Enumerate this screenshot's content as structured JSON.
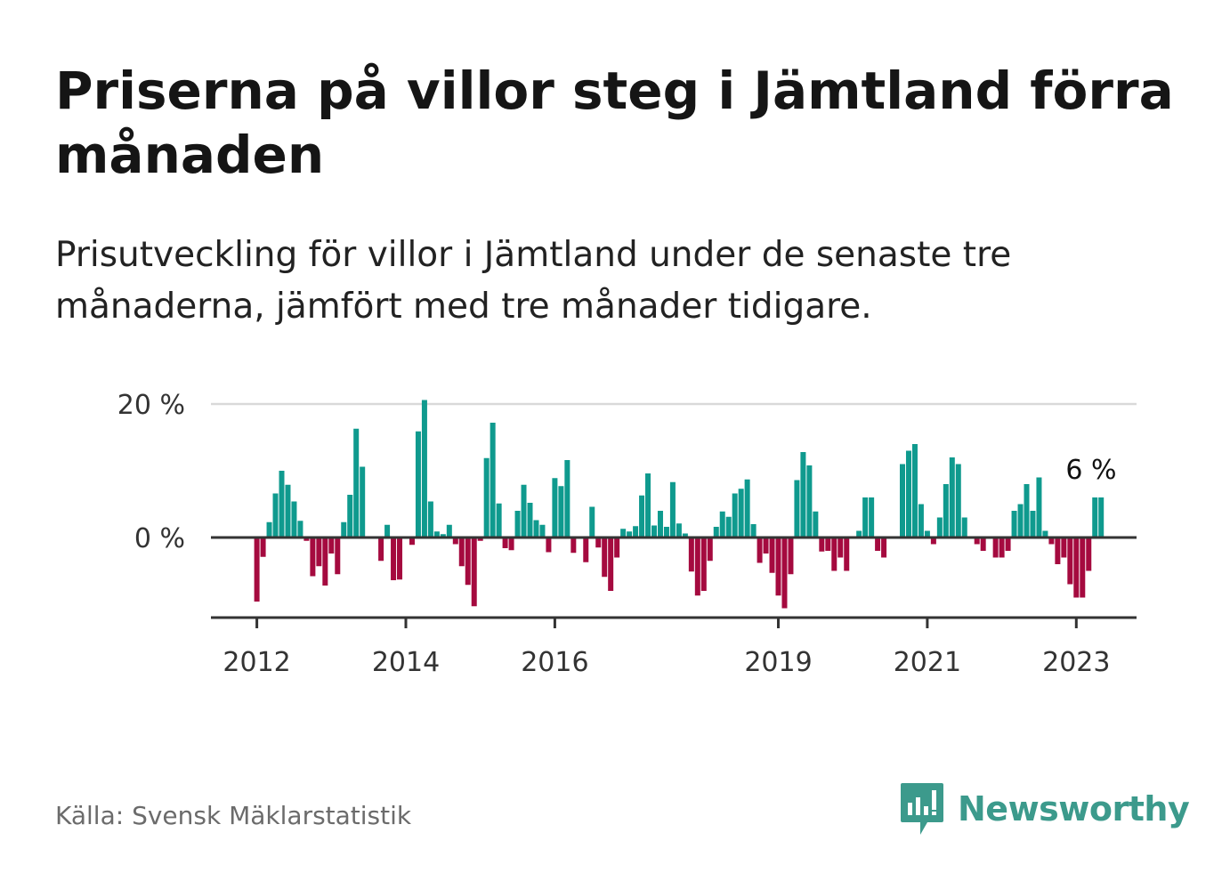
{
  "title": "Priserna på villor steg i Jämtland förra månaden",
  "subtitle": "Prisutveckling för villor i Jämtland under de senaste tre månaderna, jämfört med tre månader tidigare.",
  "source": "Källa: Svensk Mäklarstatistik",
  "brand": {
    "name": "Newsworthy",
    "icon": "newsworthy-logo-icon",
    "color": "#3c9a8c"
  },
  "chart_data": {
    "type": "bar",
    "xlabel": "",
    "ylabel": "",
    "ylim": [
      -12,
      21
    ],
    "grid": true,
    "legend": "none",
    "colors": {
      "positive": "#0f9a8e",
      "negative": "#a50a3f",
      "axis": "#333333",
      "grid": "#d9d9d9"
    },
    "y_ticks": [
      {
        "value": 0,
        "label": "0 %"
      },
      {
        "value": 20,
        "label": "20 %"
      }
    ],
    "x_ticks": [
      {
        "value": 2012,
        "label": "2012"
      },
      {
        "value": 2014,
        "label": "2014"
      },
      {
        "value": 2016,
        "label": "2016"
      },
      {
        "value": 2019,
        "label": "2019"
      },
      {
        "value": 2021,
        "label": "2021"
      },
      {
        "value": 2023,
        "label": "2023"
      }
    ],
    "start": "2012-01",
    "annotation": {
      "label": "6 %",
      "value": 6
    },
    "values": [
      -9.6,
      -2.9,
      2.3,
      6.6,
      10.0,
      7.9,
      5.4,
      2.5,
      -0.5,
      -5.8,
      -4.3,
      -7.2,
      -2.4,
      -5.5,
      2.3,
      6.4,
      16.3,
      10.6,
      0,
      0,
      -3.5,
      1.9,
      -6.4,
      -6.3,
      0,
      -1.1,
      15.9,
      20.6,
      5.4,
      0.9,
      0.5,
      1.9,
      -1.0,
      -4.3,
      -7.1,
      -10.3,
      -0.5,
      11.9,
      17.2,
      5.1,
      -1.6,
      -1.9,
      4.0,
      7.9,
      5.2,
      2.6,
      1.9,
      -2.2,
      8.9,
      7.7,
      11.6,
      -2.3,
      0,
      -3.7,
      4.6,
      -1.5,
      -5.9,
      -8.0,
      -3.0,
      1.3,
      0.9,
      1.7,
      6.3,
      9.6,
      1.8,
      4.0,
      1.6,
      8.3,
      2.1,
      0.6,
      -5.1,
      -8.7,
      -8.0,
      -3.5,
      1.6,
      3.9,
      3.1,
      6.6,
      7.3,
      8.7,
      2.0,
      -3.8,
      -2.4,
      -5.3,
      -8.7,
      -10.6,
      -5.5,
      8.6,
      12.8,
      10.8,
      3.9,
      -2.1,
      -2.0,
      -5.0,
      -3.0,
      -5.0,
      0,
      1.0,
      6.0,
      6.0,
      -2.0,
      -3.0,
      0,
      0,
      11.0,
      13.0,
      14.0,
      5.0,
      1.0,
      -1.0,
      3.0,
      8.0,
      12.0,
      11.0,
      3.0,
      0,
      -1.0,
      -2.0,
      0,
      -3.0,
      -3.0,
      -2.0,
      4.0,
      5.0,
      8.0,
      4.0,
      9.0,
      1.0,
      -1.0,
      -4.0,
      -3.0,
      -7.0,
      -9.0,
      -9.0,
      -5.0,
      6.0,
      6.0
    ]
  }
}
